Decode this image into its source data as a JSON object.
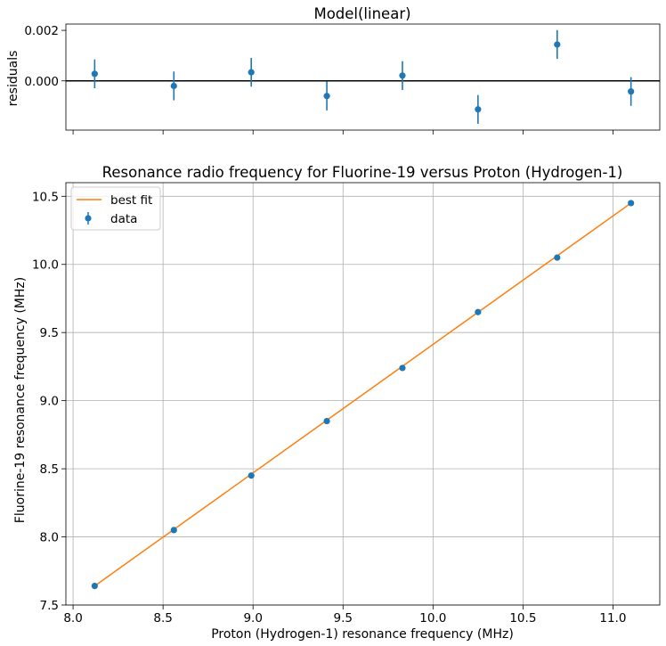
{
  "chart_data": [
    {
      "type": "scatter",
      "title": "Model(linear)",
      "xlabel": "",
      "ylabel": "residuals",
      "xlim": [
        7.96,
        11.26
      ],
      "ylim": [
        -0.00195,
        0.00225
      ],
      "x_ticks": [
        8.0,
        8.5,
        9.0,
        9.5,
        10.0,
        10.5,
        11.0
      ],
      "x_tick_labels_visible": false,
      "y_ticks": [
        0.0,
        0.002
      ],
      "y_tick_labels": [
        "0.000",
        "0.002"
      ],
      "grid": false,
      "reference_line": 0,
      "series": [
        {
          "x": [
            8.12,
            8.56,
            8.99,
            9.41,
            9.83,
            10.25,
            10.69,
            11.1
          ],
          "y": [
            0.00028,
            -0.0002,
            0.00034,
            -0.0006,
            0.00021,
            -0.00113,
            0.00144,
            -0.00042
          ],
          "yerr": 0.00057,
          "color": "#1f77b4"
        }
      ]
    },
    {
      "type": "scatter",
      "title": "Resonance radio frequency for Fluorine-19 versus Proton (Hydrogen-1)",
      "xlabel": "Proton (Hydrogen-1) resonance frequency (MHz)",
      "ylabel": "Fluorine-19 resonance frequency (MHz)",
      "xlim": [
        7.96,
        11.26
      ],
      "ylim": [
        7.5,
        10.6
      ],
      "x_ticks": [
        8.0,
        8.5,
        9.0,
        9.5,
        10.0,
        10.5,
        11.0
      ],
      "x_tick_labels": [
        "8.0",
        "8.5",
        "9.0",
        "9.5",
        "10.0",
        "10.5",
        "11.0"
      ],
      "y_ticks": [
        7.5,
        8.0,
        8.5,
        9.0,
        9.5,
        10.0,
        10.5
      ],
      "y_tick_labels": [
        "7.5",
        "8.0",
        "8.5",
        "9.0",
        "9.5",
        "10.0",
        "10.5"
      ],
      "grid": true,
      "legend_position": "top-left",
      "series": [
        {
          "name": "data",
          "kind": "errorbar-points",
          "x": [
            8.12,
            8.56,
            8.99,
            9.41,
            9.83,
            10.25,
            10.69,
            11.1
          ],
          "y": [
            7.64,
            8.05,
            8.45,
            8.85,
            9.24,
            9.65,
            10.05,
            10.45
          ],
          "color": "#1f77b4"
        },
        {
          "name": "best fit",
          "kind": "line",
          "x": [
            8.12,
            11.1
          ],
          "y": [
            7.64,
            10.45
          ],
          "color": "#ff7f0e"
        }
      ]
    }
  ]
}
